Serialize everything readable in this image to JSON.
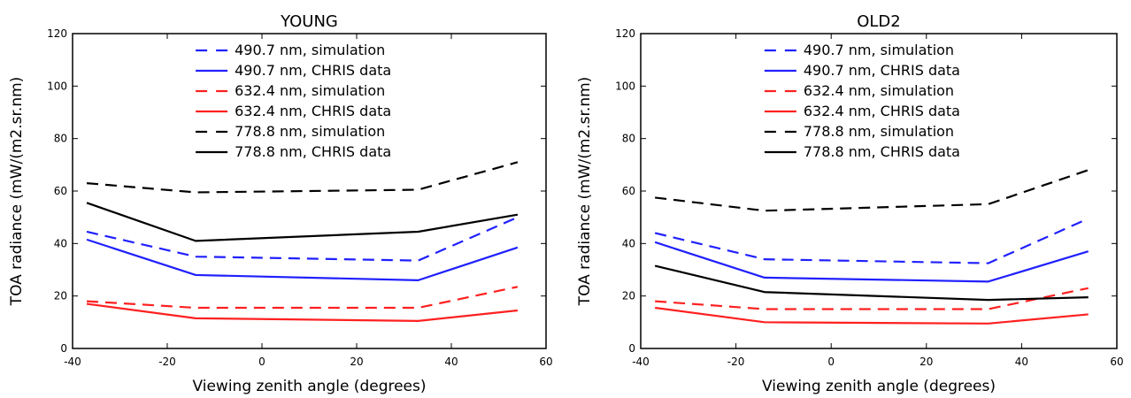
{
  "chart_data": [
    {
      "type": "line",
      "title": "YOUNG",
      "xlabel": "Viewing zenith angle (degrees)",
      "ylabel": "TOA radiance (mW/(m2.sr.nm)",
      "xlim": [
        -40,
        60
      ],
      "ylim": [
        0,
        120
      ],
      "xticks": [
        -40,
        -20,
        0,
        20,
        40,
        60
      ],
      "yticks": [
        0,
        20,
        40,
        60,
        80,
        100,
        120
      ],
      "grid": false,
      "legend_position": "top-center",
      "x": [
        -37,
        -14,
        33,
        54
      ],
      "series": [
        {
          "name": "490.7 nm, simulation",
          "color": "#2020ff",
          "style": "dashed",
          "values": [
            44.5,
            35,
            33.5,
            50
          ]
        },
        {
          "name": "490.7 nm, CHRIS data",
          "color": "#2020ff",
          "style": "solid",
          "values": [
            41.5,
            28,
            26,
            38.5
          ]
        },
        {
          "name": "632.4 nm, simulation",
          "color": "#ff2020",
          "style": "dashed",
          "values": [
            18,
            15.5,
            15.5,
            23.5
          ]
        },
        {
          "name": "632.4 nm, CHRIS data",
          "color": "#ff2020",
          "style": "solid",
          "values": [
            17,
            11.5,
            10.5,
            14.5
          ]
        },
        {
          "name": "778.8 nm, simulation",
          "color": "#000000",
          "style": "dashed",
          "values": [
            63,
            59.5,
            60.5,
            71
          ]
        },
        {
          "name": "778.8 nm, CHRIS data",
          "color": "#000000",
          "style": "solid",
          "values": [
            55.5,
            41,
            44.5,
            51
          ]
        }
      ]
    },
    {
      "type": "line",
      "title": "OLD2",
      "xlabel": "Viewing zenith angle (degrees)",
      "ylabel": "TOA radiance (mW/(m2.sr.nm)",
      "xlim": [
        -40,
        60
      ],
      "ylim": [
        0,
        120
      ],
      "xticks": [
        -40,
        -20,
        0,
        20,
        40,
        60
      ],
      "yticks": [
        0,
        20,
        40,
        60,
        80,
        100,
        120
      ],
      "grid": false,
      "legend_position": "top-center",
      "x": [
        -37,
        -14,
        33,
        54
      ],
      "series": [
        {
          "name": "490.7 nm, simulation",
          "color": "#2020ff",
          "style": "dashed",
          "values": [
            44,
            34,
            32.5,
            49.5
          ]
        },
        {
          "name": "490.7 nm, CHRIS data",
          "color": "#2020ff",
          "style": "solid",
          "values": [
            40.5,
            27,
            25.5,
            37
          ]
        },
        {
          "name": "632.4 nm, simulation",
          "color": "#ff2020",
          "style": "dashed",
          "values": [
            18,
            15,
            15,
            23
          ]
        },
        {
          "name": "632.4 nm, CHRIS data",
          "color": "#ff2020",
          "style": "solid",
          "values": [
            15.5,
            10,
            9.5,
            13
          ]
        },
        {
          "name": "778.8 nm, simulation",
          "color": "#000000",
          "style": "dashed",
          "values": [
            57.5,
            52.5,
            55,
            68
          ]
        },
        {
          "name": "778.8 nm, CHRIS data",
          "color": "#000000",
          "style": "solid",
          "values": [
            31.5,
            21.5,
            18.5,
            19.5
          ]
        }
      ]
    }
  ]
}
